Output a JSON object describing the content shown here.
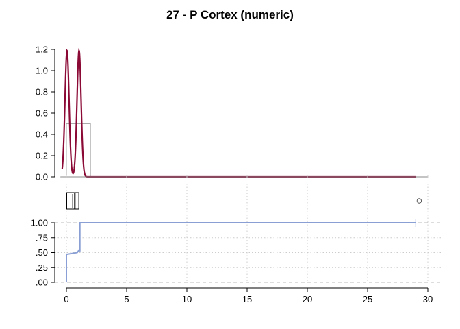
{
  "chart_data": {
    "title": "27 - P Cortex (numeric)",
    "type": "composite",
    "x_axis": {
      "range": [
        -0.5,
        30
      ],
      "ticks": [
        0,
        5,
        10,
        15,
        20,
        25,
        30
      ],
      "labels": [
        "0",
        "5",
        "10",
        "15",
        "20",
        "25",
        "30"
      ]
    },
    "panels": [
      {
        "type": "line",
        "role": "density with histogram",
        "y_range": [
          0,
          1.2
        ],
        "y_ticks": [
          0,
          0.2,
          0.4,
          0.6,
          0.8,
          1.0,
          1.2
        ],
        "y_tick_labels": [
          "0.0",
          "0.2",
          "0.4",
          "0.6",
          "0.8",
          "1.0",
          "1.2"
        ],
        "histogram": [
          {
            "x0": 0,
            "x1": 2,
            "value": 0.5
          }
        ],
        "density": {
          "peaks": [
            {
              "x": 0.05,
              "y": 1.19,
              "sd": 0.17
            },
            {
              "x": 1.05,
              "y": 1.19,
              "sd": 0.17
            }
          ],
          "x_max": 29
        },
        "line_color": "#8b0a35",
        "hist_color": "#aaaaaa"
      },
      {
        "type": "boxplot",
        "min": 0,
        "q1": 0,
        "median": 0.7,
        "q3": 1,
        "max": 1,
        "mean": 0.5,
        "outliers": [
          29
        ]
      },
      {
        "type": "line",
        "role": "empirical cumulative distribution",
        "y_range": [
          0,
          1
        ],
        "y_ticks": [
          0,
          0.25,
          0.5,
          0.75,
          1
        ],
        "y_tick_labels": [
          ".00",
          ".25",
          ".50",
          ".75",
          "1.00"
        ],
        "steps": [
          [
            0,
            0
          ],
          [
            0,
            0.47
          ],
          [
            0.9,
            0.5
          ],
          [
            1,
            0.53
          ],
          [
            1.12,
            0.53
          ],
          [
            1.12,
            1
          ],
          [
            29,
            1
          ]
        ],
        "line_color": "#8a9fd4",
        "grid": true
      }
    ]
  }
}
